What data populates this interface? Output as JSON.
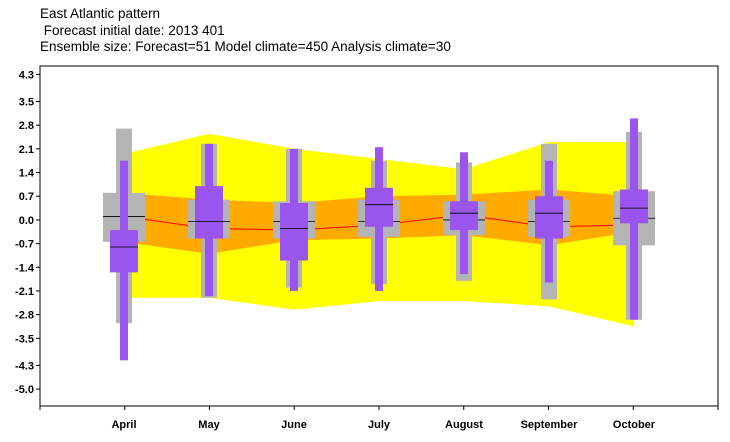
{
  "chart_data": {
    "type": "box",
    "title": "East Atlantic pattern",
    "subtitle_1": " Forecast initial date: 2013 401",
    "subtitle_2": "Ensemble size: Forecast=51 Model climate=450 Analysis climate=30",
    "xlabel": "",
    "ylabel": "",
    "ylim": [
      -5.5,
      4.55
    ],
    "yticks": [
      "4.3",
      "3.5",
      "2.8",
      "2.1",
      "1.4",
      "0.7",
      "0.0",
      "-0.7",
      "-1.4",
      "-2.1",
      "-2.8",
      "-3.5",
      "-4.3",
      "-5.0"
    ],
    "ytick_values": [
      4.3,
      3.5,
      2.8,
      2.1,
      1.4,
      0.7,
      0.0,
      -0.7,
      -1.4,
      -2.1,
      -2.8,
      -3.5,
      -4.3,
      -5.0
    ],
    "categories": [
      "April",
      "May",
      "June",
      "July",
      "August",
      "September",
      "October"
    ],
    "analysis_climate_range": {
      "name": "",
      "color": "#ffff00",
      "low": [
        -2.3,
        -2.3,
        -2.65,
        -2.4,
        -2.4,
        -2.55,
        -3.15
      ],
      "high": [
        1.95,
        2.55,
        2.1,
        1.8,
        1.5,
        2.3,
        2.3
      ]
    },
    "analysis_climate_iqr": {
      "name": "",
      "color": "#ffaa00",
      "low": [
        -0.65,
        -1.0,
        -0.6,
        -0.55,
        -0.45,
        -0.75,
        -0.35
      ],
      "high": [
        0.8,
        0.6,
        0.5,
        0.7,
        0.75,
        0.9,
        0.7
      ]
    },
    "analysis_climate_median": {
      "name": "",
      "color": "#ff0000",
      "values": [
        0.1,
        -0.25,
        -0.3,
        -0.15,
        0.15,
        -0.2,
        -0.15
      ]
    },
    "model_climate": {
      "name": "",
      "color": "#b4b4b4",
      "min": [
        -3.05,
        -2.3,
        -2.0,
        -1.9,
        -1.8,
        -2.35,
        -2.95
      ],
      "q1": [
        -0.65,
        -0.55,
        -0.55,
        -0.5,
        -0.45,
        -0.5,
        -0.75
      ],
      "median": [
        0.1,
        -0.05,
        -0.05,
        -0.05,
        0.0,
        -0.05,
        0.05
      ],
      "q3": [
        0.8,
        0.6,
        0.55,
        0.6,
        0.55,
        0.6,
        0.85
      ],
      "max": [
        2.7,
        2.25,
        2.1,
        1.75,
        1.7,
        2.25,
        2.6
      ]
    },
    "forecast": {
      "name": "",
      "color": "#9955ee",
      "min": [
        -4.15,
        -2.25,
        -2.1,
        -2.1,
        -1.6,
        -1.85,
        -2.95
      ],
      "q1": [
        -1.55,
        -0.55,
        -1.2,
        -0.2,
        -0.3,
        -0.55,
        -0.1
      ],
      "median": [
        -0.8,
        -0.05,
        -0.25,
        0.45,
        0.2,
        0.2,
        0.35
      ],
      "q3": [
        -0.3,
        1.0,
        0.5,
        0.95,
        0.55,
        0.7,
        0.9
      ],
      "max": [
        1.75,
        2.25,
        2.1,
        2.15,
        2.0,
        1.75,
        3.0
      ]
    },
    "grid": false,
    "legend": "none"
  }
}
